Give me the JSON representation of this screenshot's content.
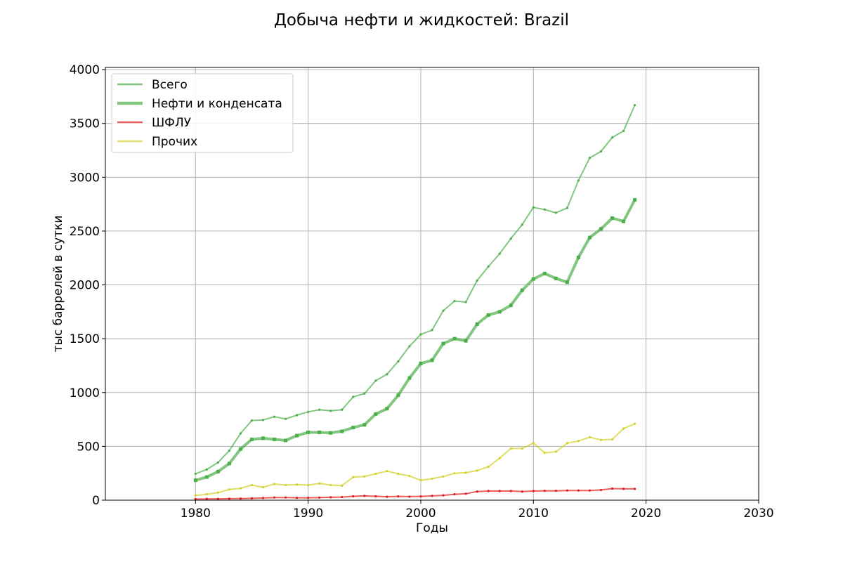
{
  "chart_data": {
    "type": "line",
    "title": "Добыча нефти и жидкостей: Brazil",
    "xlabel": "Годы",
    "ylabel": "тыс баррелей в сутки",
    "xlim": [
      1972,
      2030
    ],
    "ylim": [
      0,
      4020
    ],
    "xticks": [
      1980,
      1990,
      2000,
      2010,
      2020,
      2030
    ],
    "yticks": [
      0,
      500,
      1000,
      1500,
      2000,
      2500,
      3000,
      3500,
      4000
    ],
    "grid": true,
    "legend_position": "top-left",
    "x": [
      1980,
      1981,
      1982,
      1983,
      1984,
      1985,
      1986,
      1987,
      1988,
      1989,
      1990,
      1991,
      1992,
      1993,
      1994,
      1995,
      1996,
      1997,
      1998,
      1999,
      2000,
      2001,
      2002,
      2003,
      2004,
      2005,
      2006,
      2007,
      2008,
      2009,
      2010,
      2011,
      2012,
      2013,
      2014,
      2015,
      2016,
      2017,
      2018,
      2019
    ],
    "series": [
      {
        "name": "Всего",
        "color": "#4daf4a",
        "line_width": 2,
        "marker": "dot",
        "values": [
          245,
          285,
          350,
          460,
          620,
          740,
          745,
          775,
          755,
          790,
          820,
          840,
          830,
          840,
          960,
          990,
          1110,
          1170,
          1290,
          1430,
          1540,
          1580,
          1760,
          1850,
          1840,
          2040,
          2170,
          2290,
          2430,
          2560,
          2720,
          2700,
          2670,
          2715,
          2970,
          3180,
          3240,
          3370,
          3430,
          3670
        ]
      },
      {
        "name": "Нефти и конденсата",
        "color": "#4daf4a",
        "line_width": 4,
        "marker": "square",
        "values": [
          185,
          215,
          265,
          340,
          475,
          565,
          575,
          565,
          555,
          600,
          630,
          630,
          625,
          640,
          675,
          700,
          800,
          850,
          975,
          1135,
          1270,
          1300,
          1455,
          1500,
          1480,
          1635,
          1720,
          1750,
          1810,
          1950,
          2055,
          2105,
          2060,
          2025,
          2255,
          2440,
          2520,
          2620,
          2590,
          2790
        ]
      },
      {
        "name": "ШФЛУ",
        "color": "#e41a1c",
        "line_width": 2,
        "marker": "dot",
        "values": [
          10,
          12,
          12,
          14,
          15,
          17,
          20,
          25,
          25,
          22,
          22,
          24,
          27,
          29,
          36,
          40,
          36,
          32,
          35,
          33,
          35,
          40,
          45,
          55,
          60,
          80,
          85,
          85,
          85,
          80,
          85,
          87,
          87,
          90,
          90,
          90,
          95,
          108,
          105,
          105
        ]
      },
      {
        "name": "Прочих",
        "color": "#d4cf2a",
        "line_width": 2,
        "marker": "dot",
        "values": [
          45,
          55,
          70,
          100,
          110,
          140,
          120,
          150,
          140,
          145,
          140,
          155,
          140,
          135,
          215,
          220,
          245,
          270,
          245,
          225,
          185,
          200,
          220,
          250,
          255,
          275,
          310,
          390,
          480,
          480,
          530,
          440,
          450,
          530,
          550,
          585,
          560,
          565,
          665,
          710
        ]
      }
    ]
  }
}
